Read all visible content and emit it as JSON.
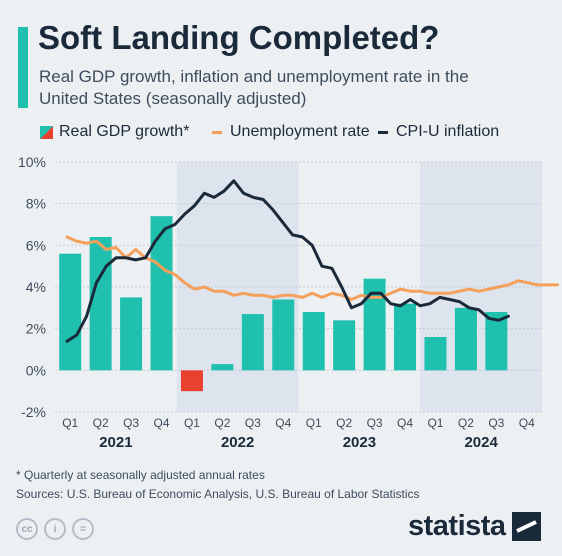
{
  "title": "Soft Landing Completed?",
  "subtitle": "Real GDP growth, inflation and unemployment rate in the United States (seasonally adjusted)",
  "legend": {
    "gdp": "Real GDP growth*",
    "unemployment": "Unemployment rate",
    "cpi": "CPI-U inflation"
  },
  "colors": {
    "gdp_positive": "#1fc0ae",
    "gdp_negative": "#e8412f",
    "unemployment": "#f5a05a",
    "cpi": "#1b2a3a",
    "shade": "#dde4ed",
    "grid": "#c3ccd6"
  },
  "footnote": "* Quarterly at seasonally adjusted annual rates",
  "sources": "Sources: U.S. Bureau of Economic Analysis, U.S. Bureau of Labor Statistics",
  "brand": "statista",
  "license_icons": [
    "cc-icon",
    "by-icon",
    "equal-icon"
  ],
  "chart_data": {
    "type": "bar+line",
    "y_ticks": [
      "10%",
      "8%",
      "6%",
      "4%",
      "2%",
      "0%",
      "-2%"
    ],
    "ylim": [
      -2,
      10
    ],
    "grid": true,
    "legend_position": "top",
    "shaded_years": [
      "2022",
      "2024"
    ],
    "quarters": [
      "Q1",
      "Q2",
      "Q3",
      "Q4",
      "Q1",
      "Q2",
      "Q3",
      "Q4",
      "Q1",
      "Q2",
      "Q3",
      "Q4",
      "Q1",
      "Q2",
      "Q3",
      "Q4"
    ],
    "years": [
      "2021",
      "2022",
      "2023",
      "2024"
    ],
    "gdp_growth": [
      5.6,
      6.4,
      3.5,
      7.4,
      -1.0,
      0.3,
      2.7,
      3.4,
      2.8,
      2.4,
      4.4,
      3.2,
      1.6,
      3.0,
      2.8,
      null
    ],
    "unemployment_rate": [
      6.4,
      6.2,
      6.1,
      6.2,
      5.8,
      5.9,
      5.4,
      5.8,
      5.4,
      5.2,
      4.8,
      4.6,
      4.2,
      3.9,
      4.0,
      3.8,
      3.8,
      3.6,
      3.7,
      3.6,
      3.6,
      3.5,
      3.6,
      3.6,
      3.5,
      3.7,
      3.5,
      3.7,
      3.6,
      3.4,
      3.6,
      3.5,
      3.5,
      3.7,
      3.9,
      3.8,
      3.8,
      3.7,
      3.7,
      3.7,
      3.8,
      3.9,
      3.8,
      3.9,
      4.0,
      4.1,
      4.3,
      4.2,
      4.1,
      4.1,
      4.1
    ],
    "cpi_inflation": [
      1.4,
      1.7,
      2.6,
      4.2,
      5.0,
      5.4,
      5.4,
      5.3,
      5.4,
      6.2,
      6.8,
      7.0,
      7.5,
      7.9,
      8.5,
      8.3,
      8.6,
      9.1,
      8.5,
      8.3,
      8.2,
      7.7,
      7.1,
      6.5,
      6.4,
      6.0,
      5.0,
      4.9,
      4.0,
      3.0,
      3.2,
      3.7,
      3.7,
      3.2,
      3.1,
      3.4,
      3.1,
      3.2,
      3.5,
      3.4,
      3.3,
      3.0,
      2.9,
      2.5,
      2.4,
      2.6
    ]
  }
}
